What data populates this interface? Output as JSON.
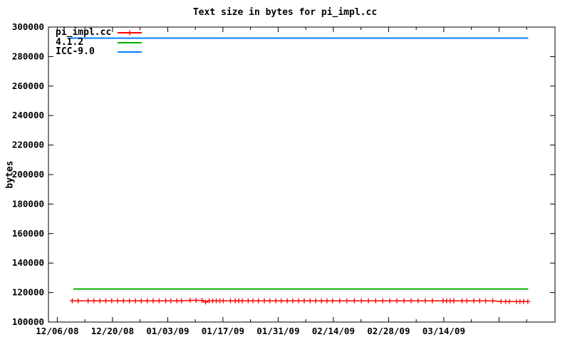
{
  "title": "Text size in bytes for pi_impl.cc",
  "y_axis_label": "bytes",
  "colors": {
    "background": "#ffffff",
    "axis": "#000000",
    "red": "#ff0000",
    "green": "#00b000",
    "blue": "#0080ff"
  },
  "legend": {
    "items": [
      {
        "label": "pi_impl.cc",
        "color_key": "red",
        "marker": "plus"
      },
      {
        "label": "4.1.2",
        "color_key": "green",
        "marker": "none"
      },
      {
        "label": "ICC-9.0",
        "color_key": "blue",
        "marker": "none"
      }
    ]
  },
  "chart_data": {
    "type": "line",
    "title": "Text size in bytes for pi_impl.cc",
    "xlabel": "",
    "ylabel": "bytes",
    "grid": false,
    "legend_position": "top-left-inside",
    "ylim": [
      100000,
      300000
    ],
    "y_ticks": [
      {
        "label": "100000",
        "value": 100000
      },
      {
        "label": "120000",
        "value": 120000
      },
      {
        "label": "140000",
        "value": 140000
      },
      {
        "label": "160000",
        "value": 160000
      },
      {
        "label": "180000",
        "value": 180000
      },
      {
        "label": "200000",
        "value": 200000
      },
      {
        "label": "220000",
        "value": 220000
      },
      {
        "label": "240000",
        "value": 240000
      },
      {
        "label": "260000",
        "value": 260000
      },
      {
        "label": "280000",
        "value": 280000
      },
      {
        "label": "300000",
        "value": 300000
      }
    ],
    "x_tick_labels": [
      {
        "label": "12/06/08",
        "day": 0
      },
      {
        "label": "12/20/08",
        "day": 14
      },
      {
        "label": "01/03/09",
        "day": 28
      },
      {
        "label": "01/17/09",
        "day": 42
      },
      {
        "label": "01/31/09",
        "day": 56
      },
      {
        "label": "02/14/09",
        "day": 70
      },
      {
        "label": "02/28/09",
        "day": 84
      },
      {
        "label": "03/14/09",
        "day": 98
      }
    ],
    "x_major_unlabeled_days": [
      112
    ],
    "x_minor_tick_days": [
      7,
      21,
      35,
      49,
      63,
      77,
      91,
      105,
      119
    ],
    "x_range_days": [
      -2.2,
      126.2
    ],
    "series": [
      {
        "name": "pi_impl.cc",
        "color": "#ff0000",
        "marker": "plus",
        "line_width": 1.5,
        "points": [
          [
            3.8,
            114400
          ],
          [
            5.3,
            114400
          ],
          [
            7.8,
            114400
          ],
          [
            9.3,
            114400
          ],
          [
            10.8,
            114400
          ],
          [
            12.3,
            114400
          ],
          [
            13.8,
            114400
          ],
          [
            15.3,
            114400
          ],
          [
            16.8,
            114400
          ],
          [
            18.3,
            114400
          ],
          [
            19.8,
            114400
          ],
          [
            21.3,
            114400
          ],
          [
            22.8,
            114400
          ],
          [
            24.3,
            114400
          ],
          [
            25.8,
            114400
          ],
          [
            27.5,
            114400
          ],
          [
            28.8,
            114400
          ],
          [
            30.3,
            114400
          ],
          [
            31.5,
            114400
          ],
          [
            33.7,
            114700
          ],
          [
            35.2,
            114700
          ],
          [
            36.7,
            114700
          ],
          [
            37.6,
            113600
          ],
          [
            38.5,
            114400
          ],
          [
            39.4,
            114400
          ],
          [
            40.3,
            114400
          ],
          [
            41.2,
            114400
          ],
          [
            42.1,
            114400
          ],
          [
            43.9,
            114400
          ],
          [
            45.1,
            114400
          ],
          [
            46.0,
            114400
          ],
          [
            46.9,
            114400
          ],
          [
            48.4,
            114400
          ],
          [
            49.6,
            114400
          ],
          [
            51.0,
            114400
          ],
          [
            52.5,
            114400
          ],
          [
            53.9,
            114400
          ],
          [
            55.4,
            114400
          ],
          [
            56.8,
            114400
          ],
          [
            58.3,
            114400
          ],
          [
            59.7,
            114400
          ],
          [
            61.2,
            114400
          ],
          [
            62.6,
            114400
          ],
          [
            64.1,
            114400
          ],
          [
            65.5,
            114400
          ],
          [
            67.0,
            114400
          ],
          [
            68.4,
            114400
          ],
          [
            69.8,
            114400
          ],
          [
            71.6,
            114400
          ],
          [
            73.4,
            114400
          ],
          [
            75.3,
            114400
          ],
          [
            77.1,
            114400
          ],
          [
            78.9,
            114400
          ],
          [
            80.7,
            114400
          ],
          [
            82.5,
            114400
          ],
          [
            84.3,
            114400
          ],
          [
            86.1,
            114400
          ],
          [
            87.9,
            114400
          ],
          [
            89.7,
            114400
          ],
          [
            91.5,
            114400
          ],
          [
            93.3,
            114400
          ],
          [
            95.1,
            114400
          ],
          [
            97.8,
            114400
          ],
          [
            98.7,
            114400
          ],
          [
            99.6,
            114400
          ],
          [
            100.5,
            114400
          ],
          [
            102.6,
            114400
          ],
          [
            103.8,
            114400
          ],
          [
            105.6,
            114400
          ],
          [
            107.1,
            114400
          ],
          [
            108.6,
            114400
          ],
          [
            110.4,
            114400
          ],
          [
            112.5,
            113900
          ],
          [
            113.7,
            113900
          ],
          [
            114.6,
            113900
          ],
          [
            116.4,
            113900
          ],
          [
            117.3,
            113900
          ],
          [
            118.2,
            113900
          ],
          [
            119.3,
            113900
          ]
        ]
      },
      {
        "name": "4.1.2",
        "color": "#00b000",
        "marker": "none",
        "line_width": 2,
        "points": [
          [
            4.1,
            122400
          ],
          [
            119.4,
            122400
          ]
        ]
      },
      {
        "name": "ICC-9.0",
        "color": "#0080ff",
        "marker": "none",
        "line_width": 2,
        "points": [
          [
            3.3,
            292500
          ],
          [
            119.4,
            292500
          ]
        ]
      }
    ]
  }
}
